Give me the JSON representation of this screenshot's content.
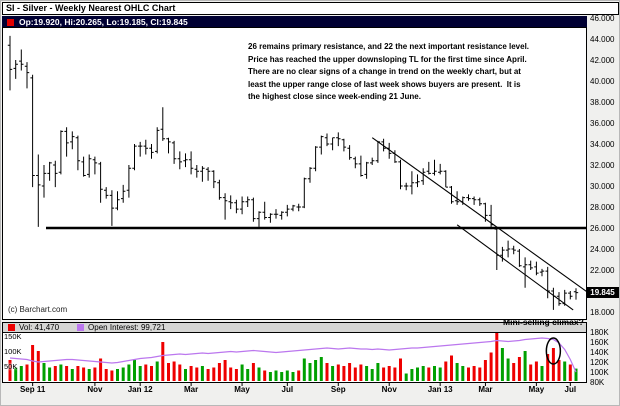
{
  "window": {
    "title": "SI - Silver - Weekly Nearest OHLC Chart"
  },
  "quote_bar": {
    "text": "Op:19.920, Hi:20.265, Lo:19.185, Cl:19.845"
  },
  "annotation_lines": [
    "26 remains primary resistance, and 22 the next important resistance level.",
    "Price has reached the upper downsloping TL for the first time since April.",
    "There are no clear signs of a change in trend on the weekly chart, but at",
    "least the upper range close of last week shows buyers are present.  It is",
    "the highest close since week-ending 21 June."
  ],
  "watermark": "(c) Barchart.com",
  "volume_legend": {
    "vol": "Vol: 41,470",
    "open_interest": "Open Interest: 99,721"
  },
  "climax_label": "Mini-selling climax?",
  "current_price_tag": "19.845",
  "colors": {
    "up_volume": "#00a000",
    "down_volume": "#ee0000",
    "open_interest_line": "#bb77ee",
    "ohlc": "#000000",
    "quote_bar_bg": "#000033",
    "trendline": "#000000",
    "resistance_line": "#000000"
  },
  "chart_data": [
    {
      "type": "ohlc",
      "title": "SI - Silver - Weekly Nearest OHLC Chart",
      "timeframe": "weekly",
      "ylim": [
        17.4,
        45.2
      ],
      "yticks": [
        46,
        44,
        42,
        40,
        38,
        36,
        34,
        32,
        30,
        28,
        26,
        24,
        22,
        20,
        18
      ],
      "ytick_format": "3dp",
      "x_ticks": [
        {
          "label": "Sep 11",
          "index": 4
        },
        {
          "label": "Nov",
          "index": 15
        },
        {
          "label": "Jan 12",
          "index": 23
        },
        {
          "label": "Mar",
          "index": 32
        },
        {
          "label": "May",
          "index": 41
        },
        {
          "label": "Jul",
          "index": 49
        },
        {
          "label": "Sep",
          "index": 58
        },
        {
          "label": "Nov",
          "index": 67
        },
        {
          "label": "Jan 13",
          "index": 76
        },
        {
          "label": "Mar",
          "index": 84
        },
        {
          "label": "May",
          "index": 93
        },
        {
          "label": "Jul",
          "index": 99
        }
      ],
      "bars": [
        [
          43.4,
          44.3,
          39.1,
          41.1
        ],
        [
          41.2,
          42.0,
          40.2,
          41.6
        ],
        [
          41.9,
          43.0,
          41.0,
          41.6
        ],
        [
          41.4,
          41.8,
          39.3,
          40.8
        ],
        [
          40.3,
          40.6,
          29.9,
          31.0
        ],
        [
          31.0,
          33.0,
          26.1,
          30.1
        ],
        [
          30.0,
          32.0,
          28.9,
          31.2
        ],
        [
          31.2,
          32.3,
          30.5,
          32.2
        ],
        [
          32.0,
          32.4,
          29.9,
          31.2
        ],
        [
          31.3,
          35.3,
          31.1,
          35.2
        ],
        [
          35.2,
          35.6,
          32.8,
          34.1
        ],
        [
          34.2,
          35.2,
          33.5,
          34.7
        ],
        [
          34.6,
          34.8,
          31.5,
          32.4
        ],
        [
          32.3,
          32.8,
          30.9,
          31.0
        ],
        [
          31.1,
          33.0,
          30.8,
          32.6
        ],
        [
          32.5,
          32.8,
          31.1,
          32.2
        ],
        [
          32.1,
          32.3,
          28.4,
          29.7
        ],
        [
          29.6,
          29.9,
          28.8,
          29.1
        ],
        [
          29.1,
          29.6,
          26.2,
          27.9
        ],
        [
          27.9,
          29.5,
          27.7,
          28.7
        ],
        [
          28.8,
          30.1,
          28.4,
          29.5
        ],
        [
          29.6,
          32.0,
          28.9,
          31.7
        ],
        [
          31.7,
          34.0,
          31.5,
          33.8
        ],
        [
          33.8,
          34.2,
          32.8,
          33.8
        ],
        [
          33.8,
          34.4,
          33.0,
          33.6
        ],
        [
          33.6,
          34.0,
          32.6,
          33.2
        ],
        [
          33.3,
          35.6,
          33.1,
          35.3
        ],
        [
          35.4,
          37.5,
          34.3,
          34.5
        ],
        [
          34.5,
          34.6,
          33.1,
          34.2
        ],
        [
          34.1,
          34.3,
          32.1,
          32.6
        ],
        [
          32.6,
          33.3,
          31.6,
          32.3
        ],
        [
          32.4,
          33.1,
          31.8,
          32.5
        ],
        [
          32.5,
          33.3,
          31.1,
          31.7
        ],
        [
          31.6,
          32.0,
          30.8,
          31.4
        ],
        [
          31.4,
          31.9,
          30.4,
          31.7
        ],
        [
          31.6,
          31.8,
          30.5,
          31.4
        ],
        [
          31.4,
          31.5,
          29.8,
          30.4
        ],
        [
          30.3,
          30.6,
          28.7,
          28.9
        ],
        [
          28.9,
          29.3,
          26.8,
          28.6
        ],
        [
          28.5,
          29.1,
          27.8,
          28.4
        ],
        [
          28.4,
          28.7,
          27.4,
          27.8
        ],
        [
          27.8,
          29.0,
          27.3,
          28.5
        ],
        [
          28.5,
          29.0,
          28.0,
          28.7
        ],
        [
          28.7,
          28.9,
          26.6,
          26.9
        ],
        [
          26.9,
          27.6,
          26.1,
          27.5
        ],
        [
          27.5,
          28.5,
          26.8,
          27.0
        ],
        [
          27.0,
          27.4,
          26.5,
          27.3
        ],
        [
          27.3,
          27.8,
          26.9,
          27.3
        ],
        [
          27.2,
          27.6,
          26.8,
          27.5
        ],
        [
          27.5,
          28.2,
          27.1,
          27.8
        ],
        [
          27.8,
          28.2,
          27.6,
          28.1
        ],
        [
          28.0,
          28.3,
          27.6,
          28.0
        ],
        [
          28.0,
          30.8,
          27.9,
          30.7
        ],
        [
          30.7,
          31.8,
          30.3,
          31.7
        ],
        [
          31.7,
          33.8,
          31.4,
          33.7
        ],
        [
          33.7,
          34.8,
          33.0,
          34.7
        ],
        [
          34.6,
          35.0,
          33.8,
          34.0
        ],
        [
          34.0,
          34.6,
          33.4,
          34.6
        ],
        [
          34.6,
          35.1,
          33.8,
          34.5
        ],
        [
          34.4,
          34.5,
          33.3,
          33.7
        ],
        [
          33.6,
          33.9,
          32.5,
          32.7
        ],
        [
          32.6,
          32.8,
          31.7,
          32.1
        ],
        [
          32.1,
          32.9,
          30.9,
          31.0
        ],
        [
          31.1,
          32.3,
          30.7,
          32.2
        ],
        [
          32.2,
          32.7,
          32.0,
          32.4
        ],
        [
          32.4,
          34.3,
          32.2,
          34.2
        ],
        [
          34.2,
          34.5,
          33.3,
          33.6
        ],
        [
          33.6,
          34.1,
          32.6,
          33.1
        ],
        [
          33.1,
          33.4,
          32.2,
          32.3
        ],
        [
          32.3,
          32.5,
          29.7,
          30.0
        ],
        [
          30.0,
          30.3,
          29.6,
          30.0
        ],
        [
          30.0,
          31.4,
          29.2,
          30.3
        ],
        [
          30.3,
          31.1,
          29.9,
          30.4
        ],
        [
          30.5,
          31.7,
          30.1,
          31.3
        ],
        [
          31.4,
          32.3,
          31.1,
          31.2
        ],
        [
          31.2,
          32.5,
          31.0,
          31.4
        ],
        [
          31.3,
          32.1,
          31.1,
          31.4
        ],
        [
          31.4,
          31.5,
          29.9,
          29.9
        ],
        [
          29.9,
          30.0,
          28.3,
          28.5
        ],
        [
          28.6,
          29.5,
          28.2,
          28.5
        ],
        [
          28.5,
          29.0,
          28.2,
          28.9
        ],
        [
          28.9,
          29.2,
          28.6,
          28.8
        ],
        [
          28.8,
          29.0,
          28.2,
          28.7
        ],
        [
          28.7,
          28.9,
          28.1,
          28.3
        ],
        [
          28.3,
          28.4,
          26.6,
          27.2
        ],
        [
          27.2,
          28.2,
          25.9,
          26.3
        ],
        [
          25.9,
          26.0,
          22.0,
          23.4
        ],
        [
          23.4,
          24.2,
          22.8,
          23.9
        ],
        [
          23.9,
          24.8,
          23.2,
          24.0
        ],
        [
          24.0,
          24.3,
          23.5,
          23.9
        ],
        [
          23.8,
          24.0,
          22.3,
          22.4
        ],
        [
          22.3,
          23.2,
          20.3,
          22.5
        ],
        [
          22.5,
          22.9,
          22.0,
          22.2
        ],
        [
          22.3,
          22.8,
          21.5,
          21.7
        ],
        [
          21.8,
          22.1,
          21.4,
          21.9
        ],
        [
          21.9,
          22.3,
          19.3,
          20.0
        ],
        [
          20.0,
          20.3,
          18.2,
          19.5
        ],
        [
          19.5,
          19.9,
          18.6,
          18.8
        ],
        [
          18.8,
          20.1,
          18.6,
          19.8
        ],
        [
          19.8,
          20.0,
          19.2,
          19.5
        ],
        [
          19.92,
          20.265,
          19.185,
          19.845
        ]
      ],
      "current_close": 19.845,
      "resistance_level": 26,
      "trendlines": [
        {
          "from_index": 64,
          "from_price": 34.6,
          "to_index": 102,
          "to_price": 19.9
        },
        {
          "from_index": 79,
          "from_price": 26.3,
          "to_index": 99.5,
          "to_price": 18.2
        }
      ]
    },
    {
      "type": "bar",
      "name": "Volume & Open Interest",
      "volume_k": [
        70,
        45,
        50,
        55,
        120,
        100,
        60,
        45,
        50,
        55,
        50,
        40,
        50,
        45,
        40,
        45,
        75,
        40,
        35,
        40,
        45,
        55,
        70,
        50,
        55,
        50,
        65,
        130,
        60,
        65,
        55,
        40,
        50,
        45,
        50,
        40,
        45,
        60,
        70,
        45,
        40,
        55,
        40,
        60,
        45,
        35,
        30,
        35,
        30,
        35,
        30,
        35,
        75,
        60,
        70,
        80,
        60,
        50,
        55,
        50,
        60,
        45,
        55,
        50,
        40,
        60,
        45,
        50,
        45,
        75,
        25,
        40,
        45,
        50,
        45,
        50,
        45,
        65,
        85,
        60,
        50,
        45,
        50,
        45,
        70,
        95,
        160,
        110,
        75,
        60,
        80,
        100,
        55,
        65,
        50,
        90,
        110,
        70,
        65,
        55,
        41.47
      ],
      "open_interest_k": [
        128,
        127,
        126,
        125,
        122,
        120,
        121,
        122,
        123,
        124,
        125,
        125,
        124,
        123,
        122,
        121,
        120,
        119,
        118,
        119,
        121,
        123,
        125,
        127,
        128,
        129,
        131,
        133,
        134,
        135,
        136,
        135,
        136,
        137,
        138,
        137,
        138,
        139,
        140,
        141,
        140,
        141,
        142,
        143,
        142,
        141,
        140,
        139,
        140,
        141,
        142,
        143,
        144,
        145,
        146,
        147,
        148,
        147,
        146,
        147,
        148,
        147,
        146,
        146,
        145,
        146,
        145,
        144,
        145,
        146,
        147,
        148,
        148,
        149,
        150,
        151,
        152,
        153,
        154,
        155,
        156,
        157,
        158,
        159,
        160,
        161,
        163,
        162,
        161,
        162,
        163,
        165,
        166,
        167,
        168,
        167,
        165,
        158,
        145,
        125,
        99.7
      ],
      "current_volume": 41470,
      "current_open_interest": 99721,
      "left_axis_ticks": [
        {
          "value": 150,
          "label": "150K"
        },
        {
          "value": 100,
          "label": "100K"
        },
        {
          "value": 50,
          "label": "50K"
        }
      ],
      "right_axis_ticks": [
        {
          "value": 180,
          "label": "180K"
        },
        {
          "value": 160,
          "label": "160K"
        },
        {
          "value": 140,
          "label": "140K"
        },
        {
          "value": 120,
          "label": "120K"
        },
        {
          "value": 100,
          "label": "100K"
        },
        {
          "value": 80,
          "label": "80K"
        }
      ],
      "circled_bar_index": 96
    }
  ]
}
